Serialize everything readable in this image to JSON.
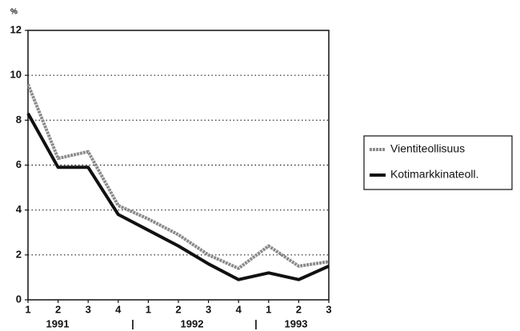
{
  "chart_data": {
    "type": "line",
    "y_label": "%",
    "categories": [
      "1",
      "2",
      "3",
      "4",
      "1",
      "2",
      "3",
      "4",
      "1",
      "2",
      "3"
    ],
    "year_labels": [
      "1991",
      "1992",
      "1993"
    ],
    "series": [
      {
        "name": "Vientiteollisuus",
        "color": "#8a8a8a",
        "values": [
          9.6,
          6.3,
          6.6,
          4.2,
          3.6,
          2.9,
          2.0,
          1.4,
          2.4,
          1.5,
          1.7
        ]
      },
      {
        "name": "Kotimarkkinateoll.",
        "color": "#111111",
        "values": [
          8.3,
          5.9,
          5.9,
          3.8,
          3.1,
          2.4,
          1.6,
          0.9,
          1.2,
          0.9,
          1.5
        ]
      }
    ],
    "ylim": [
      0,
      12
    ],
    "yticks": [
      0,
      2,
      4,
      6,
      8,
      10,
      12
    ],
    "grid": true,
    "legend": "right"
  }
}
